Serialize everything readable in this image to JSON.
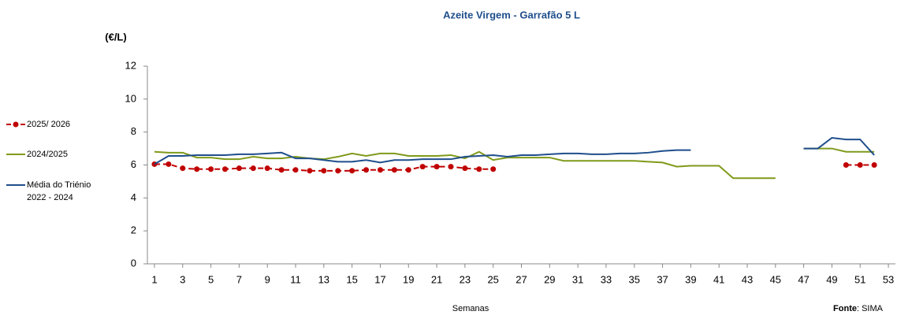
{
  "chart_data": {
    "type": "line",
    "title": "Azeite Virgem - Garrafão 5 L",
    "y_label": "(€/L)",
    "x_label": "Semanas",
    "source_label": "Fonte",
    "source_text": ": SIMA",
    "x": [
      1,
      2,
      3,
      4,
      5,
      6,
      7,
      8,
      9,
      10,
      11,
      12,
      13,
      14,
      15,
      16,
      17,
      18,
      19,
      20,
      21,
      22,
      23,
      24,
      25,
      26,
      27,
      28,
      29,
      30,
      31,
      32,
      33,
      34,
      35,
      36,
      37,
      38,
      39,
      40,
      41,
      42,
      43,
      44,
      45,
      46,
      47,
      48,
      49,
      50,
      51,
      52,
      53
    ],
    "xlim": [
      0.5,
      53.5
    ],
    "xticks": [
      1,
      3,
      5,
      7,
      9,
      11,
      13,
      15,
      17,
      19,
      21,
      23,
      25,
      27,
      29,
      31,
      33,
      35,
      37,
      39,
      41,
      43,
      45,
      47,
      49,
      51,
      53
    ],
    "ylim": [
      0,
      12
    ],
    "yticks": [
      0,
      2,
      4,
      6,
      8,
      10,
      12
    ],
    "grid": false,
    "legend": "left",
    "series": [
      {
        "name": "2025/ 2026",
        "color": "#c00000",
        "dashed": true,
        "markers": true,
        "values": [
          6.05,
          6.05,
          5.8,
          5.75,
          5.75,
          5.75,
          5.8,
          5.8,
          5.8,
          5.7,
          5.7,
          5.65,
          5.65,
          5.65,
          5.65,
          5.7,
          5.7,
          5.7,
          5.7,
          5.9,
          5.9,
          5.9,
          5.8,
          5.75,
          5.75,
          null,
          null,
          null,
          null,
          null,
          null,
          null,
          null,
          null,
          null,
          null,
          null,
          null,
          null,
          null,
          null,
          null,
          null,
          null,
          null,
          null,
          null,
          null,
          null,
          6.0,
          6.0,
          6.0,
          null
        ]
      },
      {
        "name": "2024/2025",
        "color": "#7f9a1a",
        "dashed": false,
        "markers": false,
        "values": [
          6.8,
          6.75,
          6.75,
          6.45,
          6.45,
          6.35,
          6.35,
          6.5,
          6.4,
          6.4,
          6.5,
          6.4,
          6.35,
          6.5,
          6.7,
          6.55,
          6.7,
          6.7,
          6.55,
          6.55,
          6.55,
          6.6,
          6.4,
          6.8,
          6.3,
          6.45,
          6.45,
          6.45,
          6.45,
          6.25,
          6.25,
          6.25,
          6.25,
          6.25,
          6.25,
          6.2,
          6.15,
          5.9,
          5.95,
          5.95,
          5.95,
          5.2,
          5.2,
          5.2,
          5.2,
          null,
          7.0,
          7.0,
          7.0,
          6.8,
          6.8,
          6.8,
          null
        ]
      },
      {
        "name": "Média do Triénio 2022 - 2024",
        "color": "#1f4e8c",
        "dashed": false,
        "markers": false,
        "values": [
          6.05,
          6.55,
          6.55,
          6.6,
          6.6,
          6.6,
          6.65,
          6.65,
          6.7,
          6.75,
          6.4,
          6.4,
          6.3,
          6.2,
          6.2,
          6.3,
          6.15,
          6.3,
          6.3,
          6.35,
          6.35,
          6.35,
          6.5,
          6.55,
          6.6,
          6.5,
          6.6,
          6.6,
          6.65,
          6.7,
          6.7,
          6.65,
          6.65,
          6.7,
          6.7,
          6.75,
          6.85,
          6.9,
          6.9,
          null,
          null,
          null,
          null,
          null,
          null,
          null,
          7.0,
          7.0,
          7.65,
          7.55,
          7.55,
          6.6,
          null
        ]
      }
    ]
  }
}
